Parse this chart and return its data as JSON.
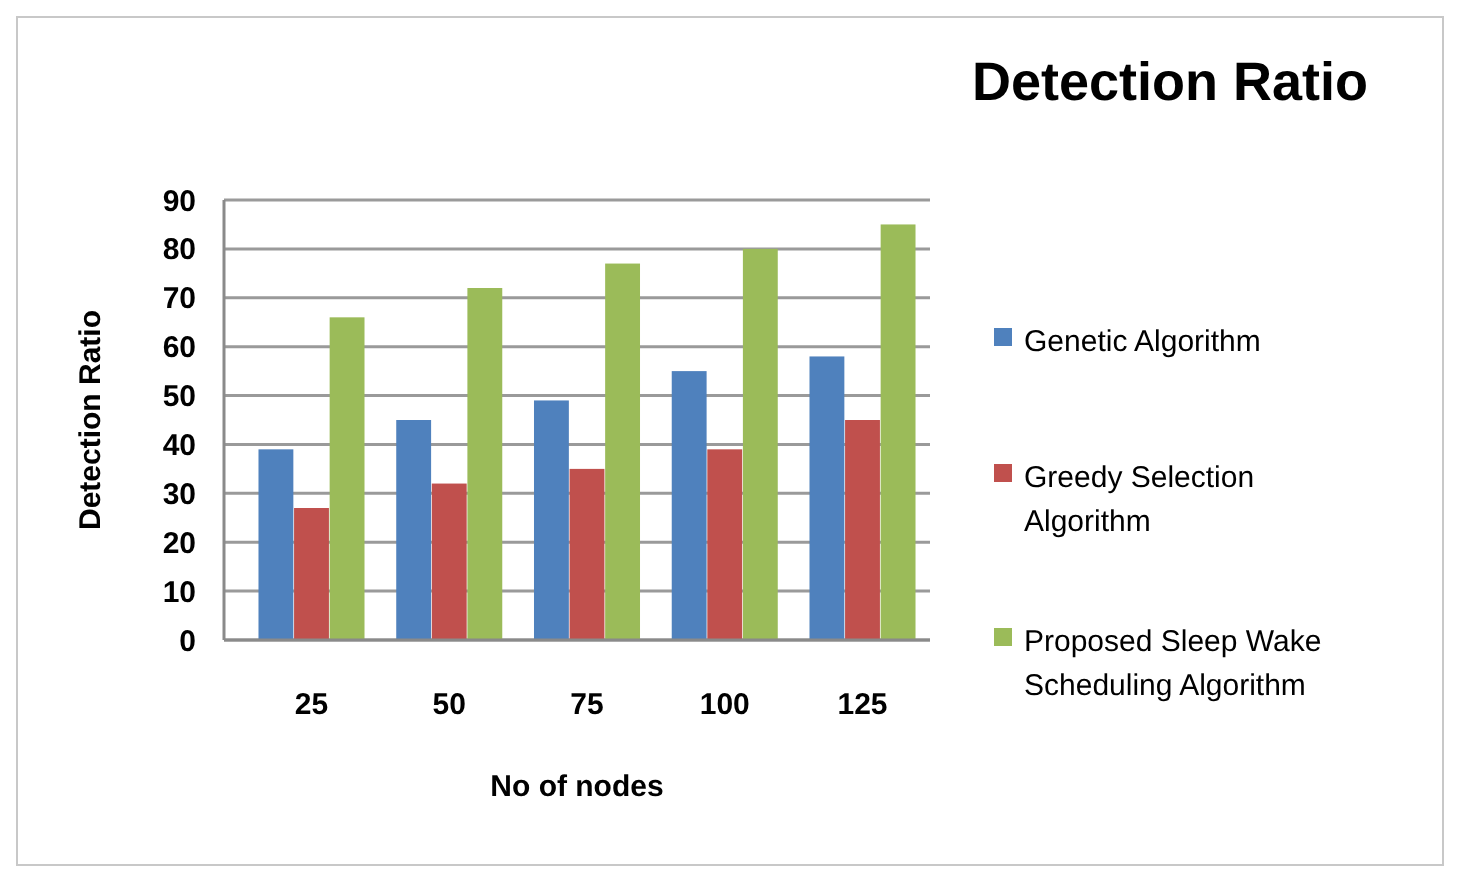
{
  "chart_data": {
    "type": "bar",
    "title": "Detection Ratio",
    "xlabel": "No of nodes",
    "ylabel": "Detection Ratio",
    "categories": [
      "25",
      "50",
      "75",
      "100",
      "125"
    ],
    "series": [
      {
        "name": "Genetic Algorithm",
        "color": "#4f81bd",
        "values": [
          39,
          45,
          49,
          55,
          58
        ]
      },
      {
        "name": "Greedy Selection Algorithm",
        "color": "#c0504d",
        "values": [
          27,
          32,
          35,
          39,
          45
        ]
      },
      {
        "name": "Proposed Sleep Wake Scheduling Algorithm",
        "color": "#9bbb59",
        "values": [
          66,
          72,
          77,
          80,
          85
        ]
      }
    ],
    "ylim": [
      0,
      90
    ],
    "yticks": [
      0,
      10,
      20,
      30,
      40,
      50,
      60,
      70,
      80,
      90
    ],
    "grid": "y",
    "legend": "right"
  }
}
